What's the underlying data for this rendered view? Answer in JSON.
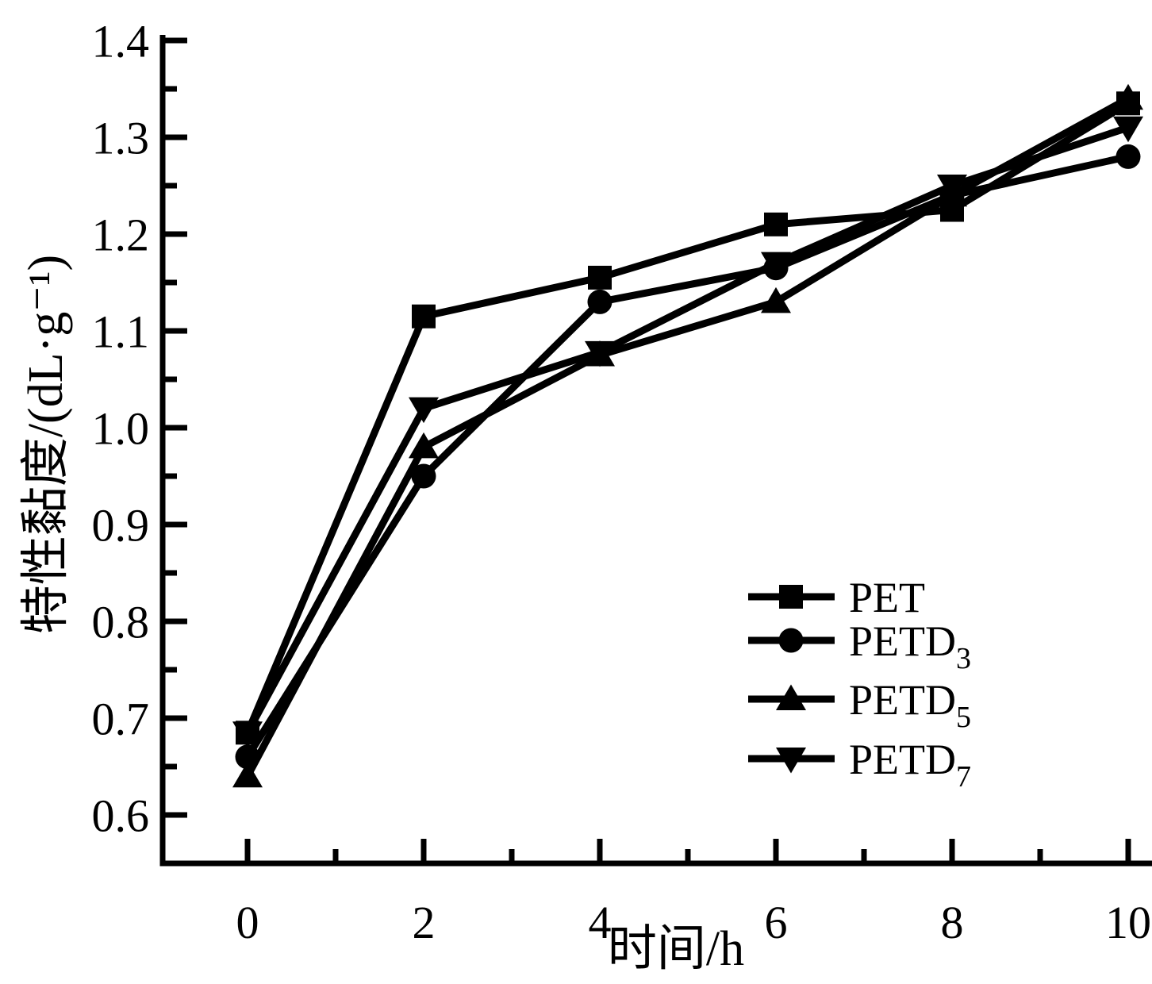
{
  "chart_data": {
    "type": "line",
    "title": "",
    "xlabel": "时间/h",
    "ylabel": "特性黏度/(dL·g⁻¹)",
    "x": [
      0,
      2,
      4,
      6,
      8,
      10
    ],
    "series": [
      {
        "name": "PET",
        "label": "PET",
        "subscript": "",
        "marker": "square",
        "values": [
          0.685,
          1.115,
          1.155,
          1.21,
          1.225,
          1.335
        ]
      },
      {
        "name": "PETD3",
        "label": "PETD",
        "subscript": "3",
        "marker": "circle",
        "values": [
          0.66,
          0.95,
          1.13,
          1.165,
          1.24,
          1.28
        ]
      },
      {
        "name": "PETD5",
        "label": "PETD",
        "subscript": "5",
        "marker": "triangle-up",
        "values": [
          0.64,
          0.98,
          1.075,
          1.13,
          1.24,
          1.34
        ]
      },
      {
        "name": "PETD7",
        "label": "PETD",
        "subscript": "7",
        "marker": "triangle-down",
        "values": [
          0.685,
          1.02,
          1.078,
          1.17,
          1.25,
          1.31
        ]
      }
    ],
    "x_axis": {
      "major_ticks": [
        0,
        2,
        4,
        6,
        8,
        10
      ],
      "tick_labels": [
        "0",
        "2",
        "4",
        "6",
        "8",
        "10"
      ],
      "minor_ticks": [
        1,
        3,
        5,
        7,
        9
      ]
    },
    "y_axis": {
      "major_ticks": [
        0.6,
        0.7,
        0.8,
        0.9,
        1.0,
        1.1,
        1.2,
        1.3,
        1.4
      ],
      "tick_labels": [
        "0.6",
        "0.7",
        "0.8",
        "0.9",
        "1.0",
        "1.1",
        "1.2",
        "1.3",
        "1.4"
      ],
      "minor_ticks": [
        0.65,
        0.75,
        0.85,
        0.95,
        1.05,
        1.15,
        1.25,
        1.35
      ]
    },
    "xlim": [
      -0.96,
      10.27
    ],
    "ylim": [
      0.551,
      1.4
    ],
    "grid": false,
    "legend_position": "inside-lower-right",
    "draw_order": [
      3,
      0,
      1,
      2
    ],
    "colors": {
      "foreground": "#000000",
      "background": "#ffffff"
    }
  }
}
